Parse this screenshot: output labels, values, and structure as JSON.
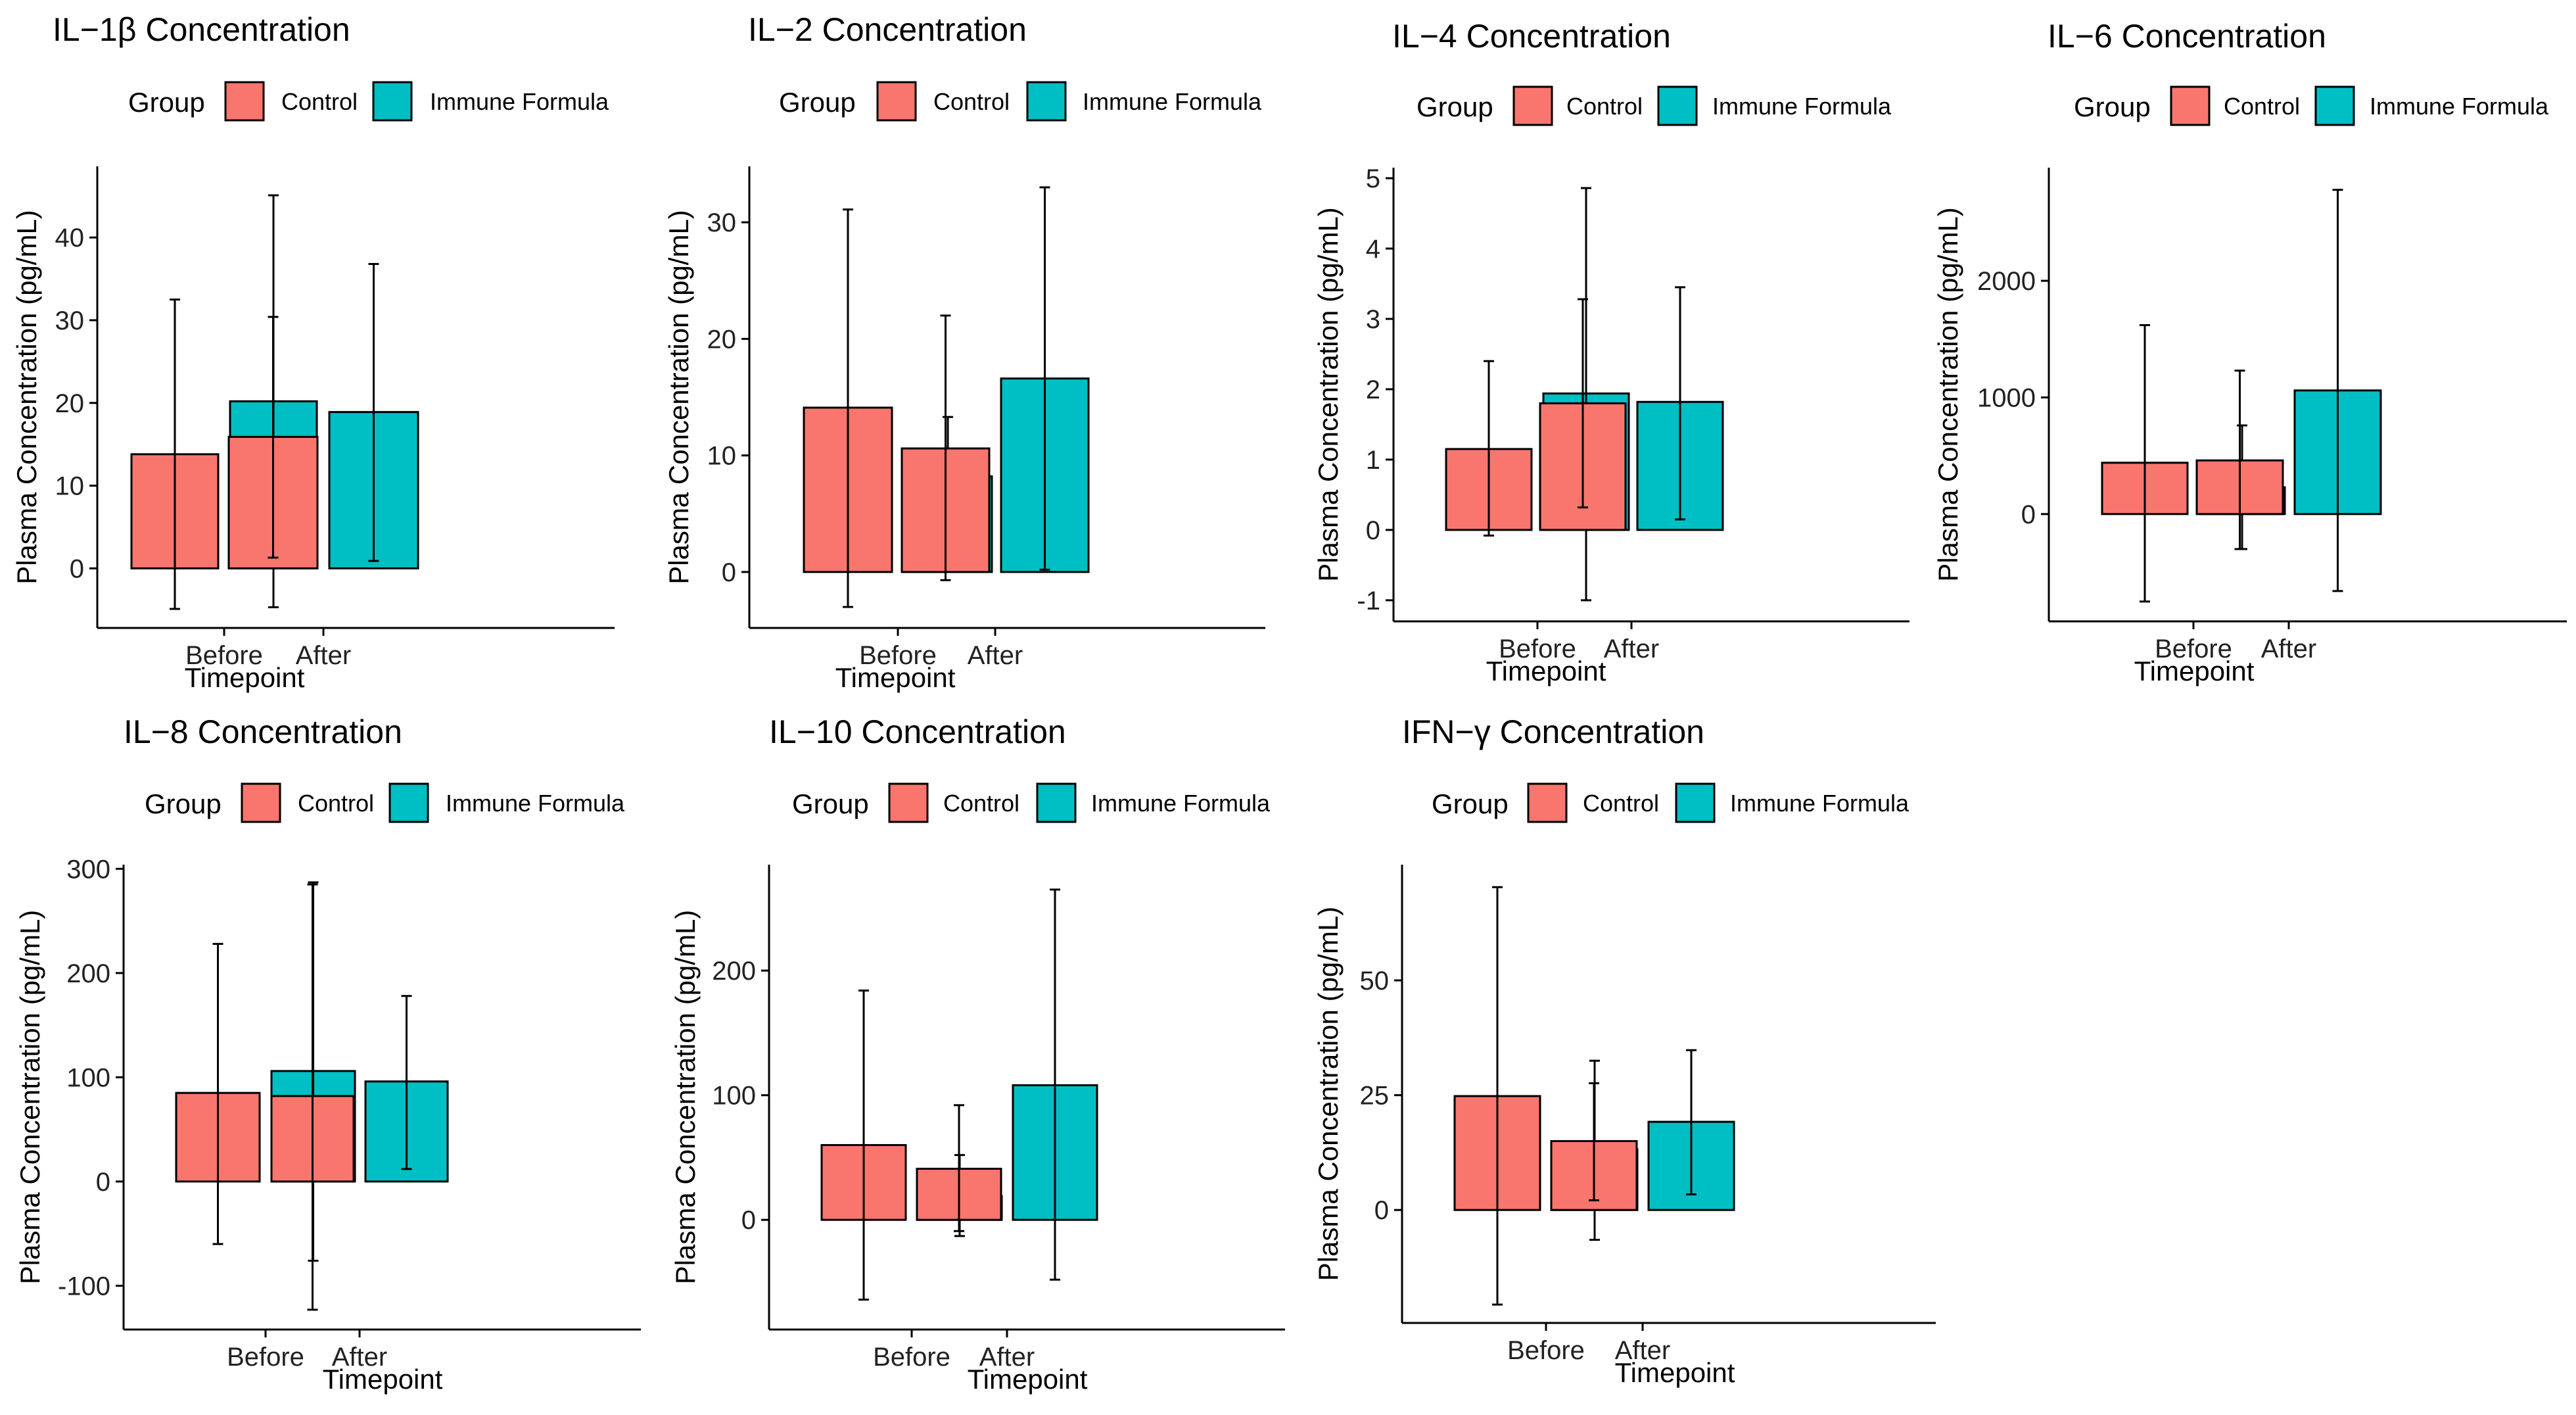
{
  "colors": {
    "Control": "#F8766D",
    "Immune Formula": "#00BFC4"
  },
  "legend": {
    "title": "Group",
    "entries": [
      "Control",
      "Immune Formula"
    ]
  },
  "chart_data": [
    {
      "type": "bar",
      "title": "IL−1β Concentration",
      "xlabel": "Timepoint",
      "ylabel": "Plasma Concentration (pg/mL)",
      "categories": [
        "Before",
        "After"
      ],
      "series": [
        {
          "name": "Control",
          "values": [
            13.8,
            15.9
          ],
          "err_low": [
            -4.9,
            1.3
          ],
          "err_high": [
            32.5,
            30.4
          ]
        },
        {
          "name": "Immune Formula",
          "values": [
            20.2,
            18.9
          ],
          "err_low": [
            -4.7,
            0.9
          ],
          "err_high": [
            45.1,
            36.8
          ]
        }
      ],
      "ylim": [
        -7.2,
        48.6
      ],
      "yticks": [
        0,
        10,
        20,
        30,
        40
      ],
      "ytick_labels": [
        "0",
        "10",
        "20",
        "30",
        "40"
      ]
    },
    {
      "type": "bar",
      "title": "IL−2 Concentration",
      "xlabel": "Timepoint",
      "ylabel": "Plasma Concentration (pg/mL)",
      "categories": [
        "Before",
        "After"
      ],
      "series": [
        {
          "name": "Control",
          "values": [
            14.1,
            10.6
          ],
          "err_low": [
            -3.0,
            -0.7
          ],
          "err_high": [
            31.1,
            22.0
          ]
        },
        {
          "name": "Immune Formula",
          "values": [
            8.2,
            16.6
          ],
          "err_low": [
            3.1,
            0.2
          ],
          "err_high": [
            13.3,
            33.0
          ]
        }
      ],
      "ylim": [
        -4.8,
        34.8
      ],
      "yticks": [
        0,
        10,
        20,
        30
      ],
      "ytick_labels": [
        "0",
        "10",
        "20",
        "30"
      ]
    },
    {
      "type": "bar",
      "title": "IL−4 Concentration",
      "xlabel": "Timepoint",
      "ylabel": "Plasma Concentration (pg/mL)",
      "categories": [
        "Before",
        "After"
      ],
      "series": [
        {
          "name": "Control",
          "values": [
            1.15,
            1.8
          ],
          "err_low": [
            -0.08,
            0.32
          ],
          "err_high": [
            2.4,
            3.28
          ]
        },
        {
          "name": "Immune Formula",
          "values": [
            1.94,
            1.82
          ],
          "err_low": [
            -1.0,
            0.15
          ],
          "err_high": [
            4.86,
            3.45
          ]
        }
      ],
      "ylim": [
        -1.3,
        5.15
      ],
      "yticks": [
        -1,
        0,
        1,
        2,
        3,
        4,
        5
      ],
      "ytick_labels": [
        "-1",
        "0",
        "1",
        "2",
        "3",
        "4",
        "5"
      ]
    },
    {
      "type": "bar",
      "title": "IL−6 Concentration",
      "xlabel": "Timepoint",
      "ylabel": "Plasma Concentration (pg/mL)",
      "categories": [
        "Before",
        "After"
      ],
      "series": [
        {
          "name": "Control",
          "values": [
            440,
            460
          ],
          "err_low": [
            -750,
            -300
          ],
          "err_high": [
            1620,
            1230
          ]
        },
        {
          "name": "Immune Formula",
          "values": [
            230,
            1060
          ],
          "err_low": [
            -300,
            -660
          ],
          "err_high": [
            760,
            2780
          ]
        }
      ],
      "ylim": [
        -920,
        2970
      ],
      "yticks": [
        0,
        1000,
        2000
      ],
      "ytick_labels": [
        "0",
        "1000",
        "2000"
      ]
    },
    {
      "type": "bar",
      "title": "IL−8 Concentration",
      "xlabel": "Timepoint",
      "ylabel": "Plasma Concentration (pg/mL)",
      "categories": [
        "Before",
        "After"
      ],
      "series": [
        {
          "name": "Control",
          "values": [
            85,
            82
          ],
          "err_low": [
            -60,
            -123
          ],
          "err_high": [
            228,
            285
          ]
        },
        {
          "name": "Immune Formula",
          "values": [
            106,
            96
          ],
          "err_low": [
            -76,
            12
          ],
          "err_high": [
            287,
            178
          ]
        }
      ],
      "ylim": [
        -142,
        304
      ],
      "yticks": [
        -100,
        0,
        100,
        200,
        300
      ],
      "ytick_labels": [
        "-100",
        "0",
        "100",
        "200",
        "300"
      ]
    },
    {
      "type": "bar",
      "title": "IL−10 Concentration",
      "xlabel": "Timepoint",
      "ylabel": "Plasma Concentration (pg/mL)",
      "categories": [
        "Before",
        "After"
      ],
      "series": [
        {
          "name": "Control",
          "values": [
            60,
            41
          ],
          "err_low": [
            -64,
            -9
          ],
          "err_high": [
            184,
            92
          ]
        },
        {
          "name": "Immune Formula",
          "values": [
            19,
            108
          ],
          "err_low": [
            -13,
            -48
          ],
          "err_high": [
            52,
            265
          ]
        }
      ],
      "ylim": [
        -88,
        285
      ],
      "yticks": [
        0,
        100,
        200
      ],
      "ytick_labels": [
        "0",
        "100",
        "200"
      ]
    },
    {
      "type": "bar",
      "title": "IFN−γ Concentration",
      "xlabel": "Timepoint",
      "ylabel": "Plasma Concentration (pg/mL)",
      "categories": [
        "Before",
        "After"
      ],
      "series": [
        {
          "name": "Control",
          "values": [
            24.8,
            15.0
          ],
          "err_low": [
            -20.6,
            2.1
          ],
          "err_high": [
            70.3,
            27.6
          ]
        },
        {
          "name": "Immune Formula",
          "values": [
            13.2,
            19.2
          ],
          "err_low": [
            -6.5,
            3.4
          ],
          "err_high": [
            32.5,
            34.8
          ]
        }
      ],
      "ylim": [
        -24.6,
        75.2
      ],
      "yticks": [
        0,
        25,
        50
      ],
      "ytick_labels": [
        "0",
        "25",
        "50"
      ]
    }
  ]
}
